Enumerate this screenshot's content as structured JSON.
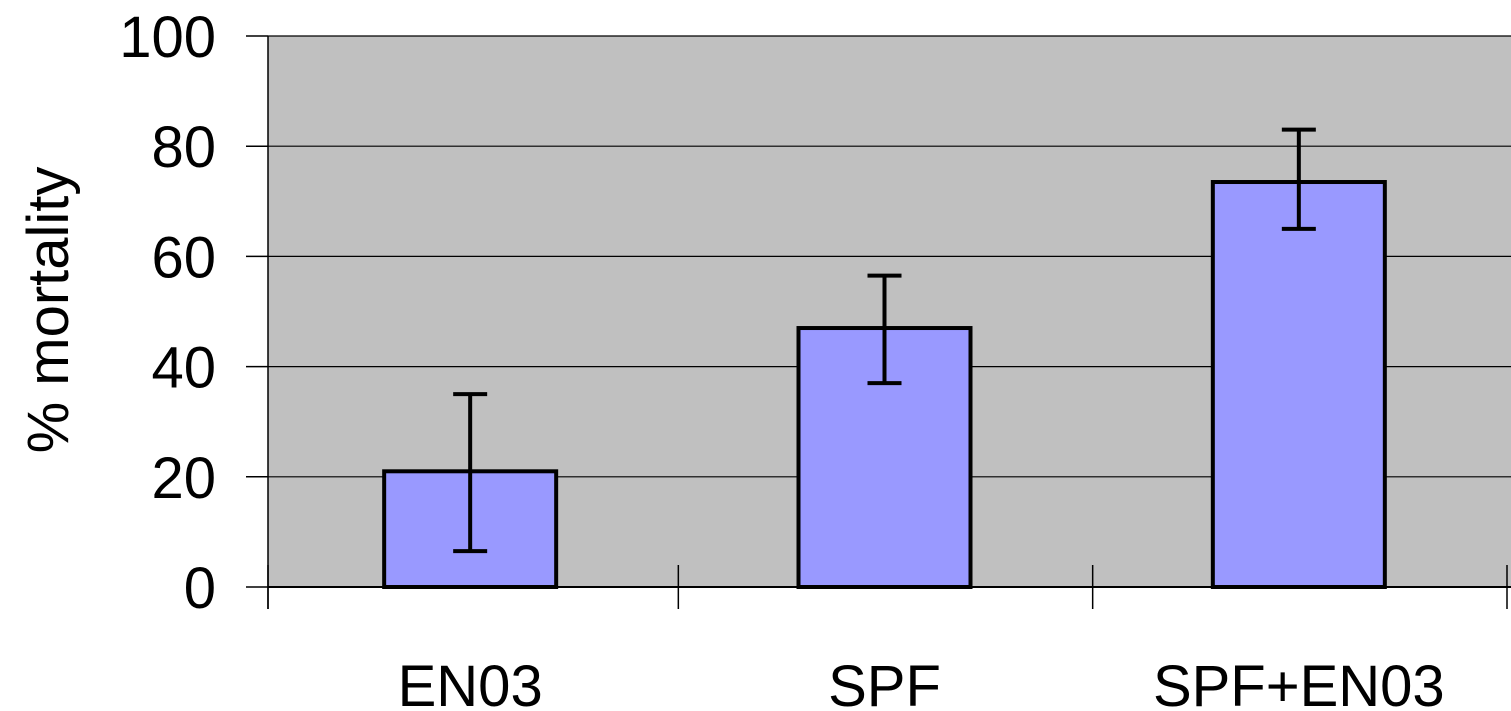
{
  "chart_data": {
    "type": "bar",
    "categories": [
      "EN03",
      "SPF",
      "SPF+EN03"
    ],
    "series": [
      {
        "values": [
          21,
          47,
          73.5
        ],
        "error_low": [
          6.5,
          37,
          65
        ],
        "error_high": [
          35,
          56.5,
          83
        ]
      }
    ],
    "ylabel": "% mortality",
    "xlabel": "",
    "ylim": [
      0,
      100
    ],
    "yticks": [
      0,
      20,
      40,
      60,
      80,
      100
    ],
    "grid": true,
    "legend": "none",
    "colors": {
      "plot_background": "#c0c0c0",
      "bar_fill": "#9999ff",
      "bar_stroke": "#000000",
      "gridline": "#000000"
    }
  }
}
